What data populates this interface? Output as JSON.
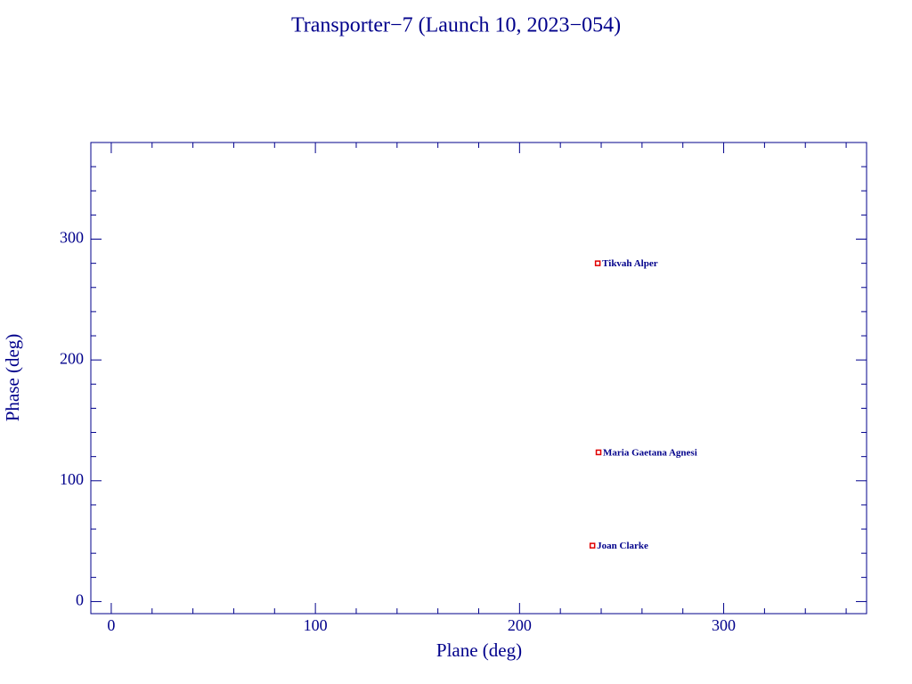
{
  "chart_data": {
    "type": "scatter",
    "title": "Transporter−7 (Launch 10, 2023−054)",
    "xlabel": "Plane (deg)",
    "ylabel": "Phase (deg)",
    "x": [
      238.3,
      238.7,
      235.7
    ],
    "values": [
      280,
      123.5,
      46.3
    ],
    "point_labels": [
      "Tikvah Alper",
      "Maria Gaetana Agnesi",
      "Joan Clarke"
    ],
    "color": "#e00000",
    "axis_color": "#00008b",
    "xlim": [
      -10,
      370
    ],
    "xticks": [
      0,
      100,
      200,
      300
    ],
    "ylim": [
      -10,
      380
    ],
    "yticks": [
      0,
      100,
      200,
      300
    ]
  }
}
